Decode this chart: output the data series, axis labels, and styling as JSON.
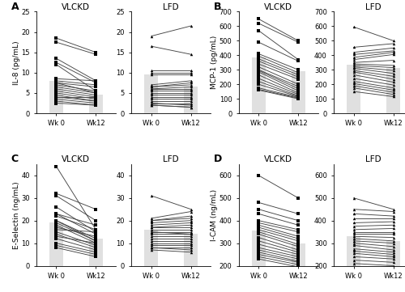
{
  "panel_A_VLCKD_wk0": [
    18.5,
    17.5,
    13.5,
    12.5,
    12.0,
    8.5,
    8.0,
    7.5,
    7.5,
    7.0,
    6.5,
    6.0,
    5.5,
    5.0,
    4.5,
    4.0,
    4.0,
    3.5,
    3.0,
    2.5
  ],
  "panel_A_VLCKD_wk12": [
    15.0,
    14.5,
    8.0,
    7.5,
    5.5,
    8.0,
    7.0,
    6.5,
    5.0,
    5.5,
    5.0,
    4.5,
    4.0,
    3.5,
    3.0,
    4.0,
    3.0,
    2.5,
    2.0,
    2.0
  ],
  "panel_A_LFD_wk0": [
    19.0,
    16.5,
    10.5,
    10.0,
    9.5,
    7.0,
    6.5,
    6.5,
    6.0,
    6.0,
    5.5,
    5.0,
    4.5,
    4.0,
    3.5,
    3.0,
    2.5,
    2.5,
    2.0,
    2.0
  ],
  "panel_A_LFD_wk12": [
    21.5,
    14.5,
    10.5,
    10.0,
    9.5,
    8.0,
    7.5,
    7.0,
    6.5,
    6.0,
    5.5,
    5.0,
    4.5,
    4.0,
    3.5,
    3.0,
    2.5,
    2.0,
    1.5,
    1.5
  ],
  "panel_A_VLCKD_bar_wk0": 8.0,
  "panel_A_VLCKD_bar_wk12": 4.5,
  "panel_A_LFD_bar_wk0": 9.5,
  "panel_A_LFD_bar_wk12": 6.5,
  "panel_A_ylim": [
    0,
    25
  ],
  "panel_A_yticks": [
    0,
    5,
    10,
    15,
    20,
    25
  ],
  "panel_A_ylabel": "IL-8 (pg/mL)",
  "panel_B_VLCKD_wk0": [
    650,
    620,
    570,
    490,
    410,
    395,
    375,
    360,
    340,
    320,
    300,
    295,
    285,
    265,
    240,
    220,
    200,
    175,
    165,
    160
  ],
  "panel_B_VLCKD_wk12": [
    500,
    490,
    370,
    360,
    300,
    280,
    265,
    250,
    235,
    200,
    185,
    170,
    155,
    140,
    130,
    120,
    115,
    110,
    105,
    100
  ],
  "panel_B_LFD_wk0": [
    595,
    455,
    420,
    405,
    385,
    370,
    350,
    340,
    330,
    320,
    310,
    295,
    285,
    265,
    240,
    220,
    205,
    190,
    175,
    150
  ],
  "panel_B_LFD_wk12": [
    500,
    480,
    450,
    430,
    420,
    405,
    365,
    330,
    315,
    295,
    275,
    255,
    235,
    215,
    195,
    175,
    160,
    145,
    130,
    115
  ],
  "panel_B_VLCKD_bar_wk0": 385,
  "panel_B_VLCKD_bar_wk12": 290,
  "panel_B_LFD_bar_wk0": 335,
  "panel_B_LFD_bar_wk12": 315,
  "panel_B_ylim": [
    0,
    700
  ],
  "panel_B_yticks": [
    0,
    100,
    200,
    300,
    400,
    500,
    600,
    700
  ],
  "panel_B_ylabel": "MCP-1 (pg/mL)",
  "panel_C_VLCKD_wk0": [
    44,
    32,
    31,
    26,
    23,
    23,
    22,
    20,
    20,
    19,
    18,
    17,
    16,
    15,
    14,
    13,
    12,
    10,
    9,
    8
  ],
  "panel_C_VLCKD_wk12": [
    16,
    25,
    20,
    15,
    18,
    14,
    16,
    12,
    11,
    11,
    10,
    13,
    15,
    9,
    8,
    10,
    7,
    6,
    5,
    4
  ],
  "panel_C_LFD_wk0": [
    31,
    21,
    20,
    20,
    19,
    18,
    17,
    17,
    16,
    15,
    15,
    14,
    13,
    12,
    11,
    10,
    9,
    8,
    8,
    7
  ],
  "panel_C_LFD_wk12": [
    25,
    24,
    22,
    21,
    20,
    19,
    18,
    17,
    16,
    15,
    14,
    14,
    13,
    12,
    11,
    10,
    9,
    8,
    7,
    6
  ],
  "panel_C_VLCKD_bar_wk0": 19,
  "panel_C_VLCKD_bar_wk12": 12,
  "panel_C_LFD_bar_wk0": 16,
  "panel_C_LFD_bar_wk12": 14,
  "panel_C_ylim": [
    0,
    45
  ],
  "panel_C_yticks": [
    0,
    10,
    20,
    30,
    40
  ],
  "panel_C_ylabel": "E-Selectin (ng/mL)",
  "panel_D_VLCKD_wk0": [
    600,
    480,
    450,
    430,
    400,
    390,
    380,
    370,
    360,
    350,
    340,
    325,
    310,
    295,
    280,
    270,
    260,
    250,
    240,
    230
  ],
  "panel_D_VLCKD_wk12": [
    500,
    430,
    400,
    380,
    360,
    350,
    330,
    320,
    310,
    295,
    285,
    270,
    260,
    250,
    240,
    230,
    220,
    215,
    205,
    195
  ],
  "panel_D_LFD_wk0": [
    500,
    450,
    430,
    410,
    390,
    375,
    360,
    350,
    340,
    330,
    320,
    310,
    300,
    290,
    275,
    265,
    255,
    240,
    225,
    210
  ],
  "panel_D_LFD_wk12": [
    450,
    440,
    420,
    410,
    395,
    380,
    365,
    350,
    340,
    325,
    310,
    300,
    285,
    270,
    260,
    250,
    240,
    230,
    215,
    200
  ],
  "panel_D_VLCKD_bar_wk0": 355,
  "panel_D_VLCKD_bar_wk12": 300,
  "panel_D_LFD_bar_wk0": 330,
  "panel_D_LFD_bar_wk12": 310,
  "panel_D_ylim": [
    200,
    650
  ],
  "panel_D_yticks": [
    200,
    300,
    400,
    500,
    600
  ],
  "panel_D_ylabel": "I-CAM (ng/mL)",
  "bar_color": "#e0e0e0",
  "bar_alpha": 1.0,
  "bar_width": 0.35,
  "line_color": "#444444",
  "marker_VLCKD": "s",
  "marker_LFD": "^",
  "marker_size": 2.5,
  "line_width": 0.65,
  "xticks": [
    0,
    1
  ],
  "xticklabels": [
    "Wk 0",
    "Wk12"
  ],
  "xlim": [
    -0.5,
    1.5
  ],
  "title_fontsize": 7.5,
  "label_fontsize": 6.5,
  "tick_fontsize": 6.0
}
